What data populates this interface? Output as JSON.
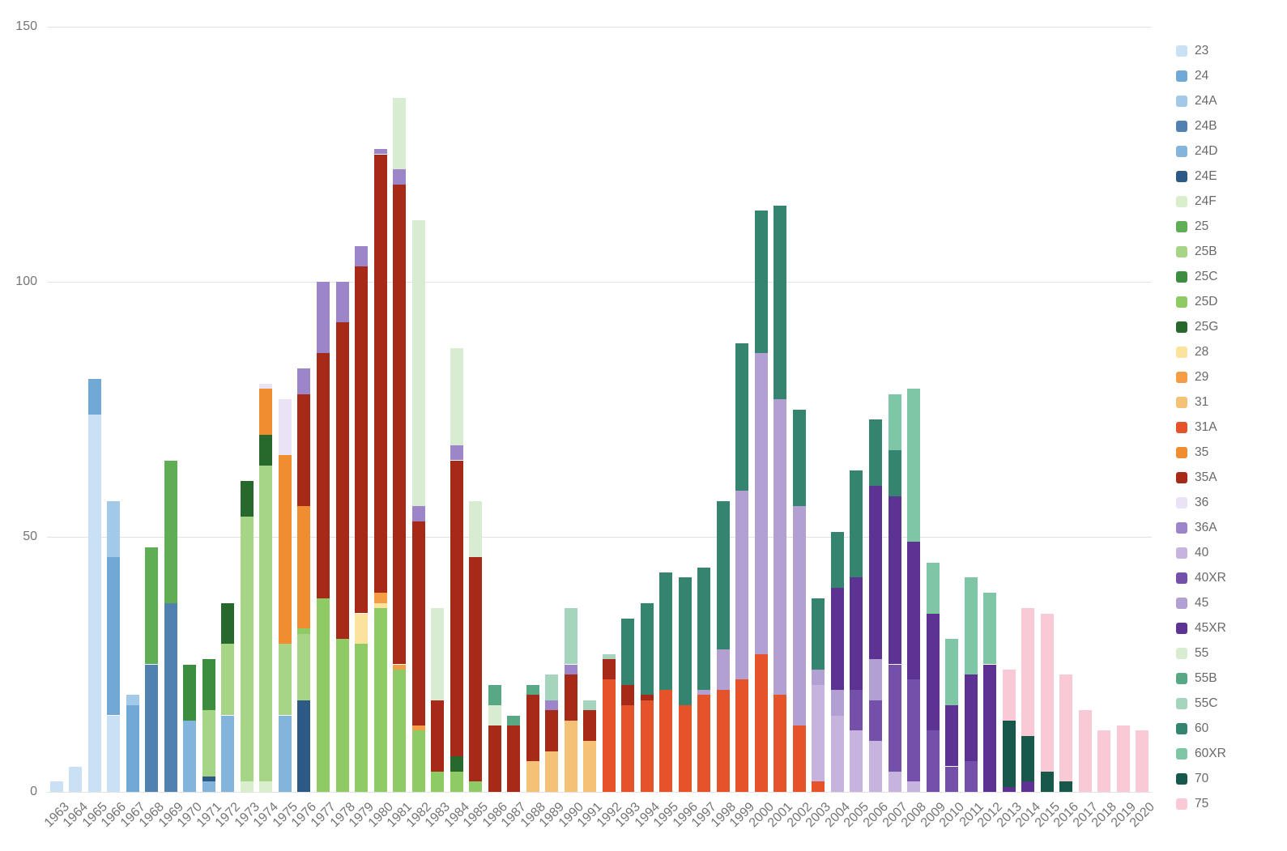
{
  "chart_data": {
    "type": "bar",
    "stacked": true,
    "title": "",
    "xlabel": "",
    "ylabel": "",
    "ylim": [
      0,
      150
    ],
    "yticks": [
      0,
      50,
      100,
      150
    ],
    "grid": true,
    "legend_position": "right",
    "x": [
      1963,
      1964,
      1965,
      1966,
      1967,
      1968,
      1969,
      1970,
      1971,
      1972,
      1973,
      1974,
      1975,
      1976,
      1977,
      1978,
      1979,
      1980,
      1981,
      1982,
      1983,
      1984,
      1985,
      1986,
      1987,
      1988,
      1989,
      1990,
      1991,
      1992,
      1993,
      1994,
      1995,
      1996,
      1997,
      1998,
      1999,
      2000,
      2001,
      2002,
      2003,
      2004,
      2005,
      2006,
      2007,
      2008,
      2009,
      2010,
      2011,
      2012,
      2013,
      2014,
      2015,
      2016,
      2017,
      2018,
      2019,
      2020
    ],
    "series": [
      {
        "name": "23",
        "color": "#c9e0f5",
        "data": {
          "1963": 2,
          "1964": 5,
          "1965": 74,
          "1966": 15
        }
      },
      {
        "name": "24",
        "color": "#71a9d6",
        "data": {
          "1965": 7,
          "1966": 31,
          "1967": 17
        }
      },
      {
        "name": "24A",
        "color": "#a3c9e8",
        "data": {
          "1966": 11,
          "1967": 2
        }
      },
      {
        "name": "24B",
        "color": "#5181ae",
        "data": {
          "1968": 25,
          "1969": 37
        }
      },
      {
        "name": "24D",
        "color": "#83b4dc",
        "data": {
          "1970": 14,
          "1971": 2,
          "1972": 15,
          "1975": 15
        }
      },
      {
        "name": "24E",
        "color": "#2c5985",
        "data": {
          "1971": 1,
          "1976": 18
        }
      },
      {
        "name": "24F",
        "color": "#d9efcc",
        "data": {
          "1973": 2,
          "1974": 2
        }
      },
      {
        "name": "25",
        "color": "#5fae55",
        "data": {
          "1968": 23,
          "1969": 28
        }
      },
      {
        "name": "25B",
        "color": "#a6d586",
        "data": {
          "1971": 13,
          "1972": 14,
          "1973": 52,
          "1974": 62,
          "1975": 14,
          "1976": 13
        }
      },
      {
        "name": "25C",
        "color": "#3d8d41",
        "data": {
          "1970": 11,
          "1971": 10
        }
      },
      {
        "name": "25D",
        "color": "#8fcb64",
        "data": {
          "1976": 1,
          "1977": 38,
          "1978": 30,
          "1979": 29,
          "1980": 36,
          "1981": 24,
          "1982": 12,
          "1983": 4,
          "1984": 4,
          "1985": 2
        }
      },
      {
        "name": "25G",
        "color": "#27692c",
        "data": {
          "1972": 8,
          "1973": 7,
          "1974": 6,
          "1984": 3
        }
      },
      {
        "name": "28",
        "color": "#fbe39e",
        "data": {
          "1979": 6,
          "1980": 1
        }
      },
      {
        "name": "29",
        "color": "#f49d45",
        "data": {
          "1980": 2,
          "1981": 1,
          "1982": 1
        }
      },
      {
        "name": "31",
        "color": "#f3c276",
        "data": {
          "1988": 6,
          "1989": 8,
          "1990": 14,
          "1991": 10
        }
      },
      {
        "name": "31A",
        "color": "#e5532b",
        "data": {
          "1992": 22,
          "1993": 17,
          "1994": 18,
          "1995": 20,
          "1996": 17,
          "1997": 19,
          "1998": 20,
          "1999": 22,
          "2000": 27,
          "2001": 19,
          "2002": 13,
          "2003": 2
        }
      },
      {
        "name": "35",
        "color": "#f08d30",
        "data": {
          "1974": 9,
          "1975": 37,
          "1976": 24
        }
      },
      {
        "name": "35A",
        "color": "#a62a17",
        "data": {
          "1976": 22,
          "1977": 48,
          "1978": 62,
          "1979": 68,
          "1980": 86,
          "1981": 94,
          "1982": 40,
          "1983": 14,
          "1984": 58,
          "1985": 44,
          "1986": 13,
          "1987": 13,
          "1988": 13,
          "1989": 8,
          "1990": 9,
          "1991": 6,
          "1992": 4,
          "1993": 4,
          "1994": 1
        }
      },
      {
        "name": "36",
        "color": "#e9e3f5",
        "data": {
          "1974": 1,
          "1975": 11
        }
      },
      {
        "name": "36A",
        "color": "#9c85c8",
        "data": {
          "1976": 5,
          "1977": 14,
          "1978": 8,
          "1979": 4,
          "1980": 1,
          "1981": 3,
          "1982": 3,
          "1984": 3,
          "1989": 2,
          "1990": 2
        }
      },
      {
        "name": "40",
        "color": "#c6b4de",
        "data": {
          "2003": 19,
          "2004": 15,
          "2005": 12,
          "2006": 10,
          "2007": 4,
          "2008": 2
        }
      },
      {
        "name": "40XR",
        "color": "#7450ab",
        "data": {
          "2005": 8,
          "2006": 8,
          "2007": 21,
          "2008": 20,
          "2009": 12,
          "2010": 5,
          "2011": 6
        }
      },
      {
        "name": "45",
        "color": "#b2a0d3",
        "data": {
          "1997": 1,
          "1998": 8,
          "1999": 37,
          "2000": 59,
          "2001": 58,
          "2002": 43,
          "2003": 3,
          "2004": 5,
          "2006": 8
        }
      },
      {
        "name": "45XR",
        "color": "#5c3392",
        "data": {
          "2004": 20,
          "2005": 22,
          "2006": 34,
          "2007": 33,
          "2008": 27,
          "2009": 23,
          "2010": 12,
          "2011": 17,
          "2012": 25,
          "2013": 1,
          "2014": 2
        }
      },
      {
        "name": "55",
        "color": "#d7ecd0",
        "data": {
          "1981": 14,
          "1982": 56,
          "1983": 18,
          "1984": 19,
          "1985": 11,
          "1986": 4
        }
      },
      {
        "name": "55B",
        "color": "#58a886",
        "data": {
          "1986": 4,
          "1987": 2,
          "1988": 2
        }
      },
      {
        "name": "55C",
        "color": "#a5d5bd",
        "data": {
          "1989": 5,
          "1990": 11,
          "1991": 2,
          "1992": 1
        }
      },
      {
        "name": "60",
        "color": "#34846f",
        "data": {
          "1993": 13,
          "1994": 18,
          "1995": 23,
          "1996": 25,
          "1997": 24,
          "1998": 29,
          "1999": 29,
          "2000": 28,
          "2001": 38,
          "2002": 19,
          "2003": 14,
          "2004": 11,
          "2005": 21,
          "2006": 13,
          "2007": 9
        }
      },
      {
        "name": "60XR",
        "color": "#7fc6a6",
        "data": {
          "2007": 11,
          "2008": 30,
          "2009": 10,
          "2010": 13,
          "2011": 19,
          "2012": 14
        }
      },
      {
        "name": "70",
        "color": "#16594a",
        "data": {
          "2013": 13,
          "2014": 9,
          "2015": 4,
          "2016": 2
        }
      },
      {
        "name": "75",
        "color": "#f9c9d5",
        "data": {
          "2013": 10,
          "2014": 25,
          "2015": 31,
          "2016": 21,
          "2017": 16,
          "2018": 12,
          "2019": 13,
          "2020": 12
        }
      }
    ]
  }
}
